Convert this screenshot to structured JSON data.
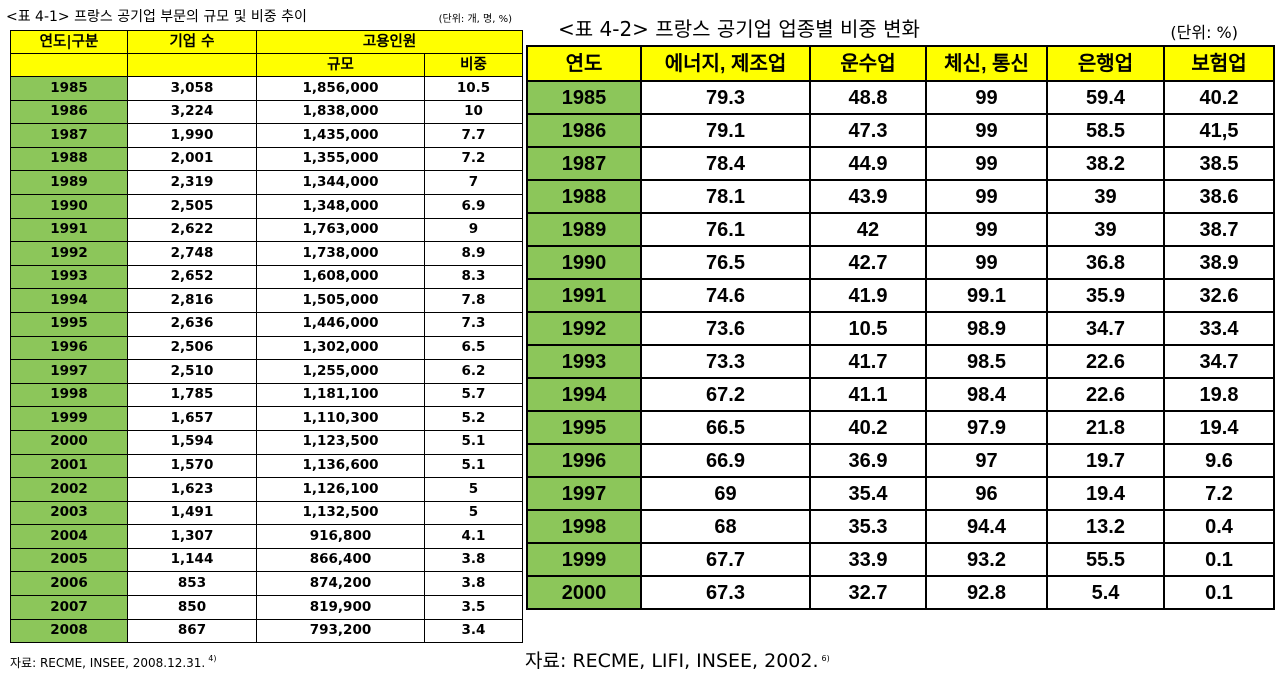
{
  "table1": {
    "title": "<표 4-1> 프랑스 공기업 부문의 규모 및 비중 추이",
    "unit": "(단위: 개, 명, %)",
    "headers": {
      "year": "연도|구분",
      "firms": "기업 수",
      "employment": "고용인원",
      "size": "규모",
      "share": "비중"
    },
    "rows": [
      [
        "1985",
        "3,058",
        "1,856,000",
        "10.5"
      ],
      [
        "1986",
        "3,224",
        "1,838,000",
        "10"
      ],
      [
        "1987",
        "1,990",
        "1,435,000",
        "7.7"
      ],
      [
        "1988",
        "2,001",
        "1,355,000",
        "7.2"
      ],
      [
        "1989",
        "2,319",
        "1,344,000",
        "7"
      ],
      [
        "1990",
        "2,505",
        "1,348,000",
        "6.9"
      ],
      [
        "1991",
        "2,622",
        "1,763,000",
        "9"
      ],
      [
        "1992",
        "2,748",
        "1,738,000",
        "8.9"
      ],
      [
        "1993",
        "2,652",
        "1,608,000",
        "8.3"
      ],
      [
        "1994",
        "2,816",
        "1,505,000",
        "7.8"
      ],
      [
        "1995",
        "2,636",
        "1,446,000",
        "7.3"
      ],
      [
        "1996",
        "2,506",
        "1,302,000",
        "6.5"
      ],
      [
        "1997",
        "2,510",
        "1,255,000",
        "6.2"
      ],
      [
        "1998",
        "1,785",
        "1,181,100",
        "5.7"
      ],
      [
        "1999",
        "1,657",
        "1,110,300",
        "5.2"
      ],
      [
        "2000",
        "1,594",
        "1,123,500",
        "5.1"
      ],
      [
        "2001",
        "1,570",
        "1,136,600",
        "5.1"
      ],
      [
        "2002",
        "1,623",
        "1,126,100",
        "5"
      ],
      [
        "2003",
        "1,491",
        "1,132,500",
        "5"
      ],
      [
        "2004",
        "1,307",
        "916,800",
        "4.1"
      ],
      [
        "2005",
        "1,144",
        "866,400",
        "3.8"
      ],
      [
        "2006",
        "853",
        "874,200",
        "3.8"
      ],
      [
        "2007",
        "850",
        "819,900",
        "3.5"
      ],
      [
        "2008",
        "867",
        "793,200",
        "3.4"
      ]
    ],
    "source": "자료: RECME, INSEE, 2008.12.31.",
    "footnote": "4)"
  },
  "table2": {
    "title": "<표 4-2> 프랑스 공기업 업종별 비중 변화",
    "unit": "(단위: %)",
    "headers": [
      "연도",
      "에너지, 제조업",
      "운수업",
      "체신, 통신",
      "은행업",
      "보험업"
    ],
    "rows": [
      [
        "1985",
        "79.3",
        "48.8",
        "99",
        "59.4",
        "40.2"
      ],
      [
        "1986",
        "79.1",
        "47.3",
        "99",
        "58.5",
        "41,5"
      ],
      [
        "1987",
        "78.4",
        "44.9",
        "99",
        "38.2",
        "38.5"
      ],
      [
        "1988",
        "78.1",
        "43.9",
        "99",
        "39",
        "38.6"
      ],
      [
        "1989",
        "76.1",
        "42",
        "99",
        "39",
        "38.7"
      ],
      [
        "1990",
        "76.5",
        "42.7",
        "99",
        "36.8",
        "38.9"
      ],
      [
        "1991",
        "74.6",
        "41.9",
        "99.1",
        "35.9",
        "32.6"
      ],
      [
        "1992",
        "73.6",
        "10.5",
        "98.9",
        "34.7",
        "33.4"
      ],
      [
        "1993",
        "73.3",
        "41.7",
        "98.5",
        "22.6",
        "34.7"
      ],
      [
        "1994",
        "67.2",
        "41.1",
        "98.4",
        "22.6",
        "19.8"
      ],
      [
        "1995",
        "66.5",
        "40.2",
        "97.9",
        "21.8",
        "19.4"
      ],
      [
        "1996",
        "66.9",
        "36.9",
        "97",
        "19.7",
        "9.6"
      ],
      [
        "1997",
        "69",
        "35.4",
        "96",
        "19.4",
        "7.2"
      ],
      [
        "1998",
        "68",
        "35.3",
        "94.4",
        "13.2",
        "0.4"
      ],
      [
        "1999",
        "67.7",
        "33.9",
        "93.2",
        "55.5",
        "0.1"
      ],
      [
        "2000",
        "67.3",
        "32.7",
        "92.8",
        "5.4",
        "0.1"
      ]
    ],
    "source": "자료: RECME, LIFI, INSEE, 2002.",
    "footnote": "6)"
  },
  "colors": {
    "header_yellow": "#ffff00",
    "year_green": "#8cc65a"
  }
}
